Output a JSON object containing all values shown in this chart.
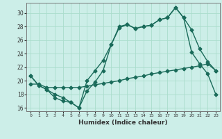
{
  "xlabel": "Humidex (Indice chaleur)",
  "bg_color": "#cceee8",
  "line_color": "#1a6b5a",
  "grid_color": "#aaddcc",
  "xlim": [
    -0.5,
    23.5
  ],
  "ylim": [
    15.5,
    31.5
  ],
  "xticks": [
    0,
    1,
    2,
    3,
    4,
    5,
    6,
    7,
    8,
    9,
    10,
    11,
    12,
    13,
    14,
    15,
    16,
    17,
    18,
    19,
    20,
    21,
    22,
    23
  ],
  "yticks": [
    16,
    18,
    20,
    22,
    24,
    26,
    28,
    30
  ],
  "line1_x": [
    0,
    1,
    2,
    3,
    4,
    5,
    6,
    7,
    8,
    9,
    10,
    11,
    12,
    13,
    14,
    15,
    16,
    17,
    18,
    19,
    20,
    21,
    22,
    23
  ],
  "line1_y": [
    20.7,
    19.3,
    18.7,
    18.0,
    17.5,
    16.8,
    16.0,
    18.5,
    19.8,
    21.5,
    25.3,
    28.0,
    28.3,
    27.7,
    28.0,
    28.2,
    29.0,
    29.3,
    30.8,
    29.3,
    27.5,
    24.7,
    22.8,
    21.5
  ],
  "line2_x": [
    0,
    1,
    2,
    3,
    4,
    5,
    6,
    7,
    8,
    9,
    10,
    11,
    12,
    13,
    14,
    15,
    16,
    17,
    18,
    19,
    20,
    21,
    22,
    23
  ],
  "line2_y": [
    20.7,
    19.3,
    18.7,
    17.5,
    17.0,
    16.8,
    16.0,
    20.0,
    21.5,
    23.0,
    25.3,
    27.8,
    28.3,
    27.7,
    28.0,
    28.2,
    29.0,
    29.3,
    30.8,
    29.3,
    24.2,
    22.5,
    21.0,
    18.0
  ],
  "line3_x": [
    0,
    1,
    2,
    3,
    4,
    5,
    6,
    7,
    8,
    9,
    10,
    11,
    12,
    13,
    14,
    15,
    16,
    17,
    18,
    19,
    20,
    21,
    22,
    23
  ],
  "line3_y": [
    19.5,
    19.5,
    19.0,
    19.0,
    19.0,
    19.0,
    19.0,
    19.2,
    19.4,
    19.6,
    19.8,
    20.0,
    20.3,
    20.5,
    20.7,
    21.0,
    21.2,
    21.4,
    21.6,
    21.8,
    22.0,
    22.2,
    22.5,
    21.5
  ],
  "marker": "D",
  "marker_size": 2.5,
  "linewidth": 1.0
}
